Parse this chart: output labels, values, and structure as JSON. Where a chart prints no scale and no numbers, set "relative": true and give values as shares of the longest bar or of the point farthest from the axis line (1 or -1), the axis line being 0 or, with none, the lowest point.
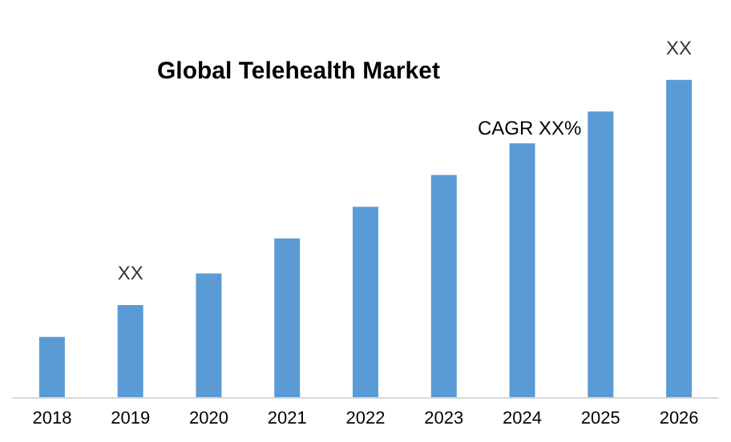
{
  "chart_data": {
    "type": "bar",
    "title": "Global Telehealth Market",
    "categories": [
      "2018",
      "2019",
      "2020",
      "2021",
      "2022",
      "2023",
      "2024",
      "2025",
      "2026"
    ],
    "values": [
      0.19,
      0.29,
      0.39,
      0.5,
      0.6,
      0.7,
      0.8,
      0.9,
      1
    ],
    "color": "#5b9bd5",
    "relative": true,
    "annotations": [
      {
        "text": "XX",
        "x": "2019",
        "y": 0.29
      },
      "CAGR XX%",
      {
        "text": "XX",
        "x": "2026",
        "y": 1
      }
    ]
  }
}
